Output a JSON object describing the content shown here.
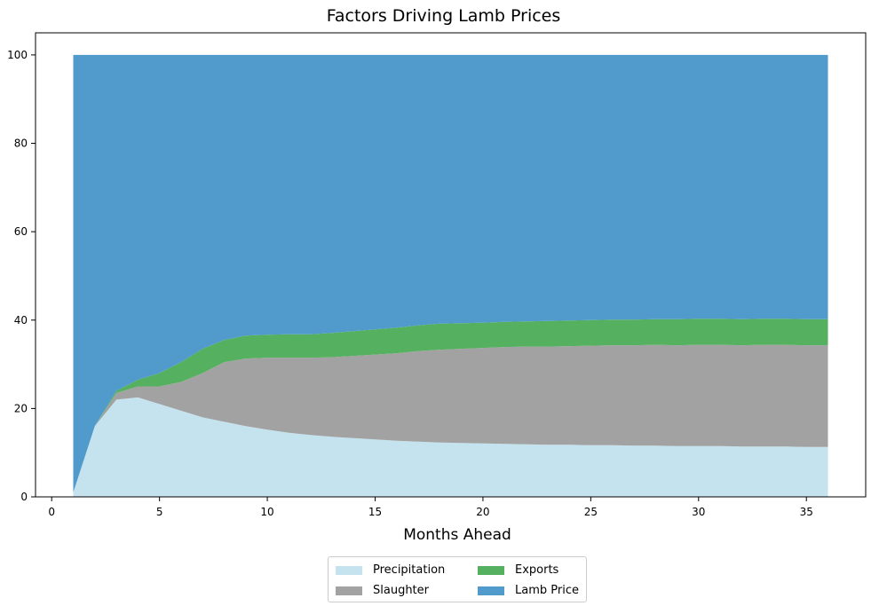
{
  "chart_data": {
    "type": "area",
    "stacked": true,
    "title": "Factors Driving Lamb Prices",
    "xlabel": "Months Ahead",
    "ylabel": "",
    "xlim": [
      -0.75,
      37.75
    ],
    "ylim": [
      0,
      105
    ],
    "xticks": [
      0,
      5,
      10,
      15,
      20,
      25,
      30,
      35
    ],
    "yticks": [
      0,
      20,
      40,
      60,
      80,
      100
    ],
    "legend_position": "bottom-center",
    "x": [
      1,
      2,
      3,
      4,
      5,
      6,
      7,
      8,
      9,
      10,
      11,
      12,
      13,
      14,
      15,
      16,
      17,
      18,
      19,
      20,
      21,
      22,
      23,
      24,
      25,
      26,
      27,
      28,
      29,
      30,
      31,
      32,
      33,
      34,
      35,
      36
    ],
    "series": [
      {
        "name": "Precipitation",
        "color": "#c4e3ef",
        "values": [
          1,
          16,
          22,
          22.5,
          21,
          19.5,
          18,
          17,
          16,
          15.2,
          14.5,
          14,
          13.6,
          13.3,
          13,
          12.7,
          12.5,
          12.3,
          12.2,
          12.1,
          12,
          11.9,
          11.8,
          11.8,
          11.7,
          11.7,
          11.6,
          11.6,
          11.5,
          11.5,
          11.5,
          11.4,
          11.4,
          11.4,
          11.3,
          11.3
        ]
      },
      {
        "name": "Slaughter",
        "color": "#a2a2a2",
        "values": [
          0,
          0,
          1.5,
          2.5,
          4,
          6.5,
          10,
          13.5,
          15.3,
          16.3,
          17,
          17.5,
          18,
          18.6,
          19.2,
          19.8,
          20.5,
          21,
          21.3,
          21.6,
          21.9,
          22.1,
          22.2,
          22.3,
          22.5,
          22.6,
          22.7,
          22.8,
          22.8,
          22.9,
          22.9,
          22.9,
          23,
          23,
          23,
          23
        ]
      },
      {
        "name": "Exports",
        "color": "#55b05f",
        "values": [
          0,
          0,
          0.5,
          1.5,
          3,
          4.5,
          5.5,
          5,
          5.2,
          5.2,
          5.3,
          5.3,
          5.5,
          5.6,
          5.7,
          5.8,
          5.8,
          5.9,
          5.8,
          5.7,
          5.7,
          5.7,
          5.8,
          5.8,
          5.8,
          5.8,
          5.8,
          5.8,
          5.9,
          5.9,
          5.9,
          5.9,
          5.9,
          5.9,
          5.9,
          5.9
        ]
      },
      {
        "name": "Lamb Price",
        "color": "#509bcb",
        "values": [
          99,
          84,
          76,
          73.5,
          72,
          69.5,
          66.5,
          64.5,
          63.5,
          63.3,
          63.2,
          63.2,
          62.9,
          62.5,
          62.1,
          61.7,
          61.2,
          60.8,
          60.7,
          60.6,
          60.4,
          60.3,
          60.2,
          60.1,
          60,
          59.9,
          59.9,
          59.8,
          59.8,
          59.7,
          59.7,
          59.8,
          59.7,
          59.7,
          59.8,
          59.8
        ]
      }
    ]
  }
}
